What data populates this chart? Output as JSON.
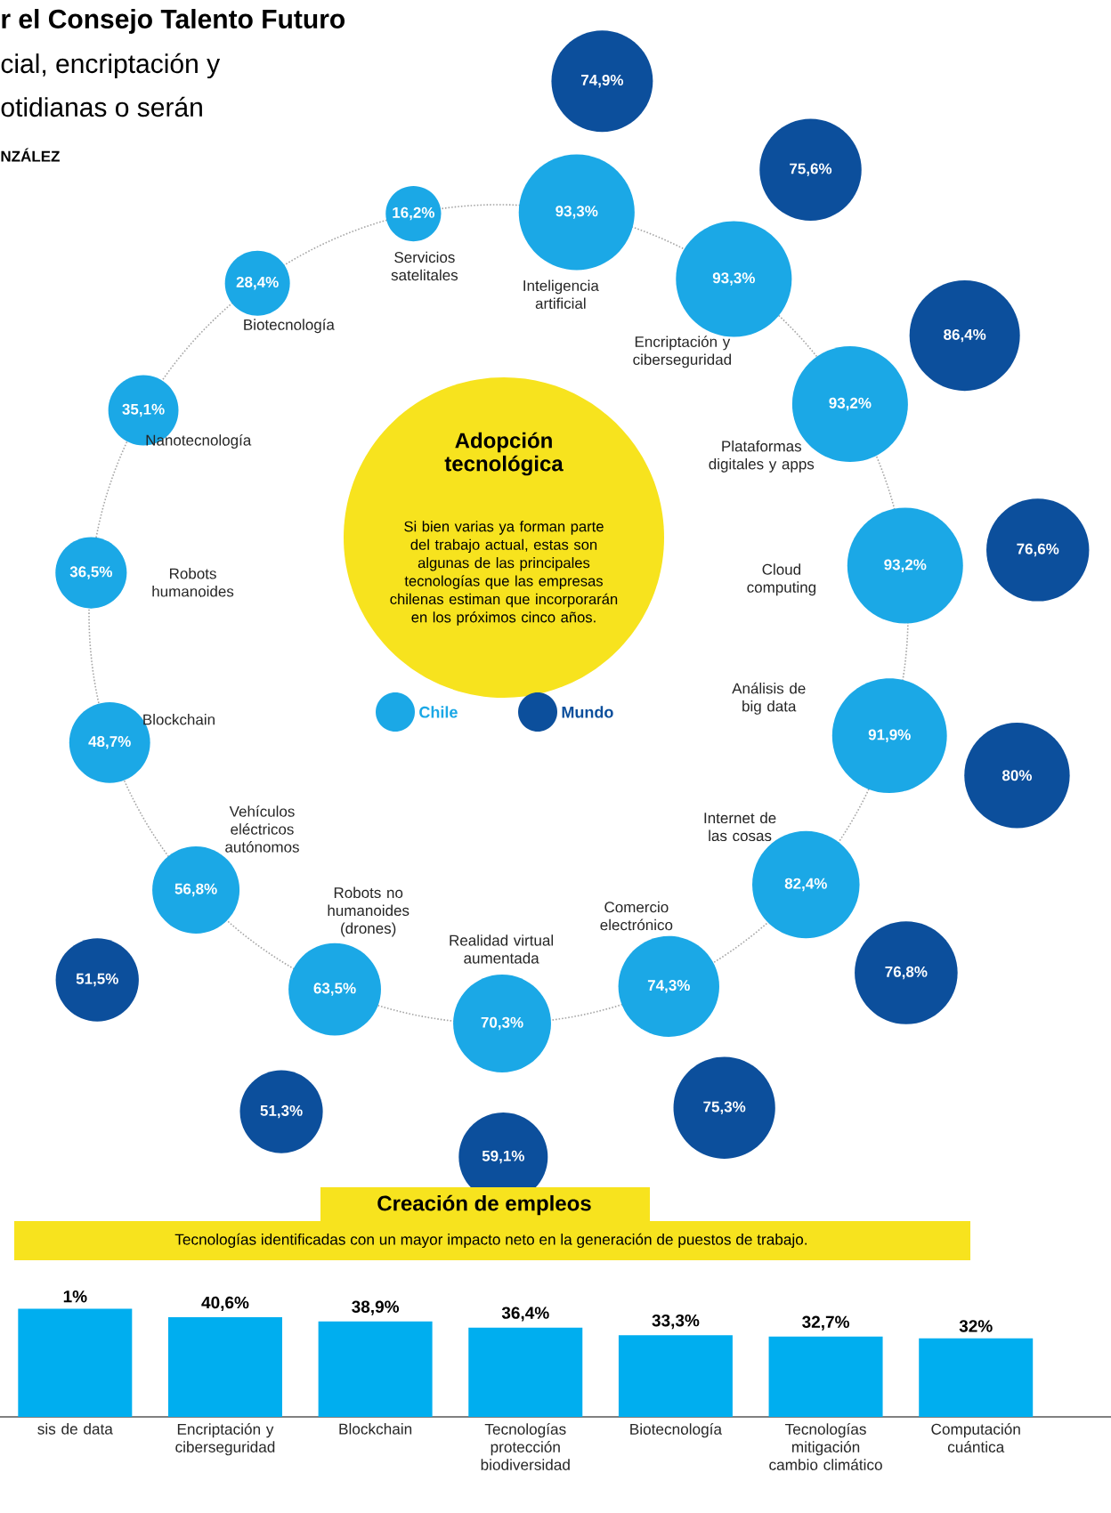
{
  "chart_data": [
    {
      "type": "other",
      "title": "Adopción tecnológica",
      "subtitle": "Si bien varias ya forman parte del trabajo actual, estas son algunas de las principales tecnologías que las empresas chilenas estiman que incorporarán en los próximos cinco años.",
      "legend": "center",
      "annotations": [
        "r el Consejo Talento Futuro",
        "cial, encriptación y",
        "otidianas o serán",
        "NZÁLEZ"
      ],
      "categories": [
        "Inteligencia artificial",
        "Encriptación y ciberseguridad",
        "Plataformas digitales y apps",
        "Cloud computing",
        "Análisis de big data",
        "Internet de las cosas",
        "Comercio electrónico",
        "Realidad virtual aumentada",
        "Robots no humanoides (drones)",
        "Vehículos eléctricos autónomos",
        "Blockchain",
        "Robots humanoides",
        "Nanotecnología",
        "Biotecnología",
        "Servicios satelitales"
      ],
      "series": [
        {
          "name": "Chile",
          "color": "#1ba8e6",
          "values": [
            93.3,
            93.3,
            93.2,
            93.2,
            91.9,
            82.4,
            74.3,
            70.3,
            63.5,
            56.8,
            48.7,
            36.5,
            35.1,
            28.4,
            16.2
          ],
          "value_labels": [
            "93,3%",
            "93,3%",
            "93,2%",
            "93,2%",
            "91,9%",
            "82,4%",
            "74,3%",
            "70,3%",
            "63,5%",
            "56,8%",
            "48,7%",
            "36,5%",
            "35,1%",
            "28,4%",
            "16,2%"
          ]
        },
        {
          "name": "Mundo",
          "color": "#0c4f9c",
          "values": [
            74.9,
            75.6,
            86.4,
            76.6,
            80,
            76.8,
            75.3,
            59.1,
            51.3,
            51.5,
            null,
            null,
            null,
            null,
            null
          ],
          "value_labels": [
            "74,9%",
            "75,6%",
            "86,4%",
            "76,6%",
            "80%",
            "76,8%",
            "75,3%",
            "59,1%",
            "51,3%",
            "51,5%",
            null,
            null,
            null,
            null,
            null
          ]
        }
      ]
    },
    {
      "type": "bar",
      "title": "Creación de empleos",
      "subtitle": "Tecnologías identificadas con un mayor impacto neto en la generación de puestos de trabajo.",
      "annotations": [
        {
          "text": "1%",
          "x": "sis de data",
          "y": 44.1
        }
      ],
      "categories": [
        "sis de data",
        "Encriptación y ciberseguridad",
        "Blockchain",
        "Tecnologías protección biodiversidad",
        "Biotecnología",
        "Tecnologías mitigación cambio climático",
        "Computación cuántica"
      ],
      "values": [
        44.1,
        40.6,
        38.9,
        36.4,
        33.3,
        32.7,
        32
      ],
      "color": "#00aeef",
      "value_labels": [
        null,
        "40,6%",
        "38,9%",
        "36,4%",
        "33,3%",
        "32,7%",
        "32%"
      ]
    }
  ]
}
